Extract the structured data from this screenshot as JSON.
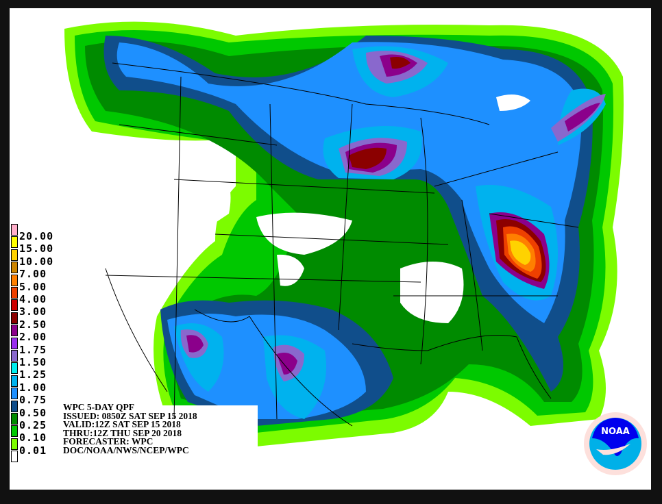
{
  "title": "WPC 5-DAY QPF",
  "info": {
    "line1": "WPC 5-DAY QPF",
    "issued": "ISSUED: 0850Z SAT SEP 15 2018",
    "valid": "VALID:12Z SAT SEP 15 2018",
    "thru": "THRU:12Z THU SEP 20 2018",
    "forecaster": "FORECASTER: WPC",
    "source": "DOC/NOAA/NWS/NCEP/WPC"
  },
  "legend": {
    "units_levels": [
      {
        "label": "20.00",
        "color": "#ffaec9"
      },
      {
        "label": "15.00",
        "color": "#ffff00"
      },
      {
        "label": "10.00",
        "color": "#ffd200"
      },
      {
        "label": "7.00",
        "color": "#cd8500"
      },
      {
        "label": "5.00",
        "color": "#ff7f00"
      },
      {
        "label": "4.00",
        "color": "#ee4000"
      },
      {
        "label": "3.00",
        "color": "#cd0000"
      },
      {
        "label": "2.50",
        "color": "#8b0000"
      },
      {
        "label": "2.00",
        "color": "#8b008b"
      },
      {
        "label": "1.75",
        "color": "#9a2cee"
      },
      {
        "label": "1.50",
        "color": "#8968cd"
      },
      {
        "label": "1.25",
        "color": "#00eeee"
      },
      {
        "label": "1.00",
        "color": "#00b2ee"
      },
      {
        "label": "0.75",
        "color": "#1e90ff"
      },
      {
        "label": "0.50",
        "color": "#104e8b"
      },
      {
        "label": "0.25",
        "color": "#008b00"
      },
      {
        "label": "0.10",
        "color": "#00c800"
      },
      {
        "label": "0.01",
        "color": "#7cfc00"
      }
    ],
    "below_color": "#ffffff"
  },
  "logo": {
    "text": "NOAA",
    "ring_text": "NATIONAL OCEANIC AND ATMOSPHERIC ADMINISTRATION · U.S. DEPARTMENT OF COMMERCE"
  }
}
